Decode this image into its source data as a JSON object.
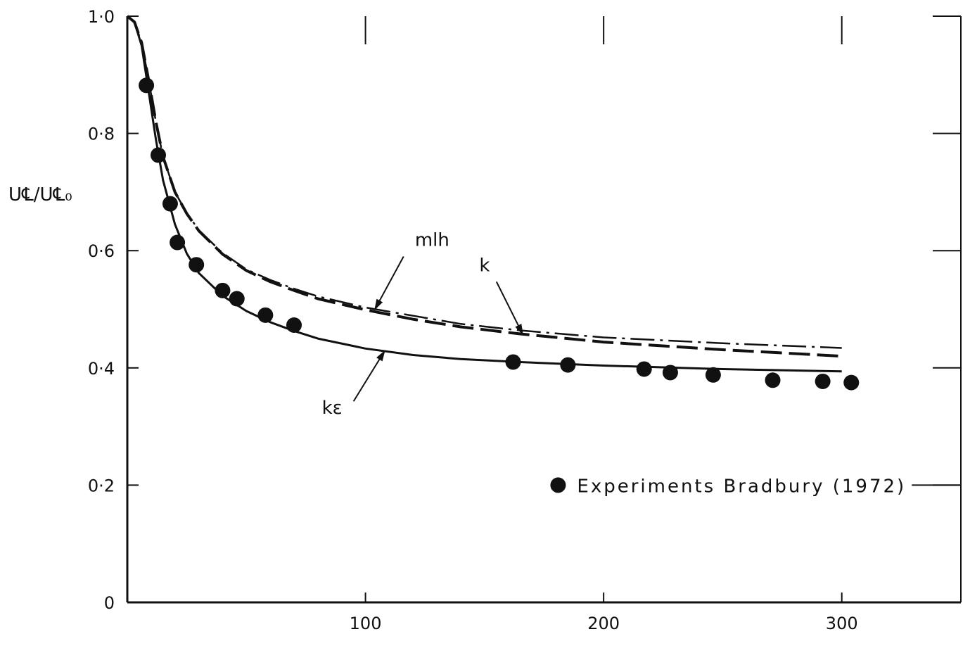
{
  "chart_data": {
    "type": "line",
    "xlabel": "",
    "ylabel": "U℄/U℄₀",
    "xlim": [
      0,
      350
    ],
    "ylim": [
      0,
      1.0
    ],
    "x_ticks": [
      100,
      200,
      300
    ],
    "x_tick_labels": [
      "100",
      "200",
      "300"
    ],
    "y_ticks": [
      0,
      0.2,
      0.4,
      0.6,
      0.8,
      1.0
    ],
    "y_tick_labels": [
      "0",
      "0·2",
      "0·4",
      "0·6",
      "0·8",
      "1·0"
    ],
    "grid": false,
    "legend": {
      "position": "bottom-right",
      "entries": [
        "Experiments Bradbury (1972)"
      ]
    },
    "series": [
      {
        "name": "mlh",
        "style": "dash-dot",
        "x": [
          0,
          3,
          6,
          9,
          12,
          15,
          20,
          25,
          30,
          40,
          50,
          60,
          70,
          80,
          100,
          120,
          140,
          165,
          200,
          250,
          300
        ],
        "values": [
          1.0,
          0.99,
          0.955,
          0.89,
          0.82,
          0.76,
          0.7,
          0.664,
          0.635,
          0.596,
          0.568,
          0.55,
          0.535,
          0.522,
          0.503,
          0.489,
          0.475,
          0.464,
          0.452,
          0.442,
          0.434
        ]
      },
      {
        "name": "k",
        "style": "dashed",
        "x": [
          0,
          3,
          6,
          9,
          12,
          15,
          20,
          25,
          30,
          40,
          50,
          60,
          70,
          80,
          100,
          120,
          140,
          165,
          200,
          250,
          300
        ],
        "values": [
          1.0,
          0.99,
          0.955,
          0.89,
          0.82,
          0.76,
          0.7,
          0.663,
          0.634,
          0.594,
          0.566,
          0.547,
          0.532,
          0.518,
          0.499,
          0.483,
          0.47,
          0.458,
          0.444,
          0.431,
          0.42
        ]
      },
      {
        "name": "kε",
        "style": "solid",
        "x": [
          0,
          3,
          6,
          9,
          12,
          15,
          20,
          25,
          30,
          40,
          50,
          60,
          70,
          80,
          100,
          120,
          140,
          165,
          200,
          250,
          300
        ],
        "values": [
          1.0,
          0.99,
          0.95,
          0.87,
          0.79,
          0.72,
          0.645,
          0.595,
          0.562,
          0.523,
          0.497,
          0.478,
          0.463,
          0.45,
          0.433,
          0.422,
          0.415,
          0.41,
          0.404,
          0.398,
          0.394
        ]
      },
      {
        "name": "Experiments Bradbury (1972)",
        "style": "markers",
        "x": [
          8,
          13,
          18,
          21,
          29,
          40,
          46,
          58,
          70,
          162,
          185,
          217,
          228,
          246,
          271,
          292,
          304
        ],
        "values": [
          0.882,
          0.763,
          0.68,
          0.614,
          0.576,
          0.532,
          0.518,
          0.49,
          0.473,
          0.41,
          0.405,
          0.398,
          0.392,
          0.388,
          0.379,
          0.377,
          0.375
        ]
      }
    ],
    "annotations": [
      {
        "text": "mlh",
        "points_to": "mlh"
      },
      {
        "text": "k",
        "points_to": "k"
      },
      {
        "text": "kε",
        "points_to": "kε"
      }
    ]
  }
}
